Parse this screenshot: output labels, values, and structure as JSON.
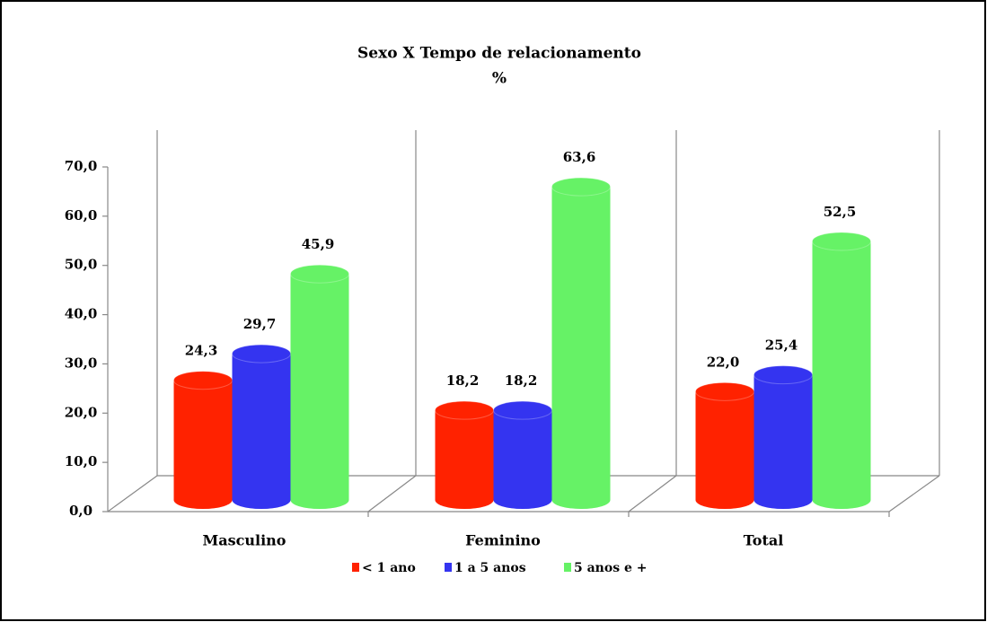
{
  "chart_data": {
    "type": "bar3d",
    "title": "Sexo X  Tempo de relacionamento",
    "subtitle": "%",
    "categories": [
      "Masculino",
      "Feminino",
      "Total"
    ],
    "series": [
      {
        "name": "< 1 ano",
        "color": "#ff2200",
        "values": [
          24.3,
          18.2,
          22.0
        ],
        "value_labels": [
          "24,3",
          "18,2",
          "22,0"
        ]
      },
      {
        "name": "1 a 5 anos",
        "color": "#3434f0",
        "values": [
          29.7,
          18.2,
          25.4
        ],
        "value_labels": [
          "29,7",
          "18,2",
          "25,4"
        ]
      },
      {
        "name": "5 anos e +",
        "color": "#66f266",
        "values": [
          45.9,
          63.6,
          52.5
        ],
        "value_labels": [
          "45,9",
          "63,6",
          "52,5"
        ]
      }
    ],
    "ylim": [
      0,
      70
    ],
    "yticks": [
      {
        "value": 0,
        "label": "0,0"
      },
      {
        "value": 10,
        "label": "10,0"
      },
      {
        "value": 20,
        "label": "20,0"
      },
      {
        "value": 30,
        "label": "30,0"
      },
      {
        "value": 40,
        "label": "40,0"
      },
      {
        "value": 50,
        "label": "50,0"
      },
      {
        "value": 60,
        "label": "60,0"
      },
      {
        "value": 70,
        "label": "70,0"
      }
    ],
    "legend": "bottom"
  }
}
